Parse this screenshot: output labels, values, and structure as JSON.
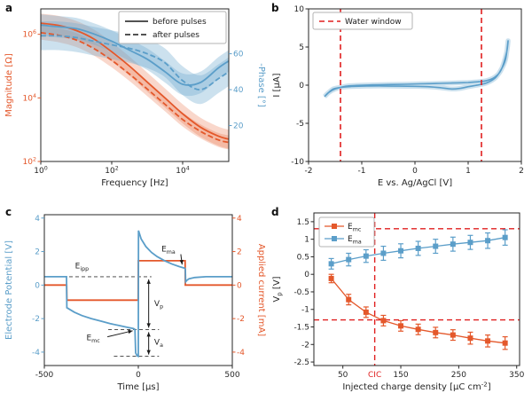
{
  "page": {
    "background": "#ffffff"
  },
  "colors": {
    "orange": "#e4582b",
    "orange_band": "rgba(235,110,70,0.28)",
    "blue": "#5b9ec9",
    "blue_band": "rgba(110,170,205,0.35)",
    "red": "#e01f1f",
    "axis": "#262626",
    "legend_border": "#b3b3b3",
    "legend_text": "#1a1a1a"
  },
  "chart_data": [
    {
      "panel_label": "a",
      "type": "line",
      "xlabel": "Frequency [Hz]",
      "x_scale": "log",
      "x_range": [
        0,
        5.3
      ],
      "x_ticks": [
        {
          "v": 0,
          "label": "10^{0}"
        },
        {
          "v": 2,
          "label": "10^{2}"
        },
        {
          "v": 4,
          "label": "10^{4}"
        }
      ],
      "left_axis": {
        "label": "Magnitude [Ω]",
        "scale": "log",
        "range": [
          2,
          6.8
        ],
        "ticks": [
          {
            "v": 2,
            "label": "10^{2}"
          },
          {
            "v": 4,
            "label": "10^{4}"
          },
          {
            "v": 6,
            "label": "10^{6}"
          }
        ]
      },
      "right_axis": {
        "label": "-Phase [°]",
        "range": [
          0,
          85
        ],
        "ticks": [
          {
            "v": 20,
            "label": "20"
          },
          {
            "v": 40,
            "label": "40"
          },
          {
            "v": 60,
            "label": "60"
          }
        ]
      },
      "legend": [
        {
          "label": "before pulses",
          "dash": false
        },
        {
          "label": "after pulses",
          "dash": true
        }
      ],
      "x": [
        0,
        0.5,
        1,
        1.5,
        2,
        2.5,
        3,
        3.5,
        4,
        4.5,
        5,
        5.3
      ],
      "series": [
        {
          "name": "magnitude-before",
          "axis": "left",
          "color": "orange",
          "dash": false,
          "band": 0.3,
          "y": [
            6.35,
            6.28,
            6.12,
            5.85,
            5.45,
            5.0,
            4.5,
            4.0,
            3.5,
            3.08,
            2.8,
            2.7
          ]
        },
        {
          "name": "magnitude-after",
          "axis": "left",
          "color": "orange",
          "dash": true,
          "band": 0.22,
          "y": [
            6.05,
            5.97,
            5.82,
            5.55,
            5.18,
            4.75,
            4.28,
            3.8,
            3.32,
            2.95,
            2.68,
            2.6
          ]
        },
        {
          "name": "phase-before",
          "axis": "right",
          "color": "blue",
          "dash": false,
          "band": 6,
          "y": [
            76,
            75,
            74,
            71,
            67,
            62,
            57,
            50,
            43,
            44,
            52,
            56
          ]
        },
        {
          "name": "phase-after",
          "axis": "right",
          "color": "blue",
          "dash": true,
          "band": 8,
          "y": [
            70,
            70,
            69,
            67,
            65,
            63,
            60,
            55,
            45,
            40,
            46,
            50
          ]
        }
      ]
    },
    {
      "panel_label": "b",
      "type": "line",
      "xlabel": "E vs. Ag/AgCl [V]",
      "ylabel": "I [μA]",
      "x_range": [
        -2,
        2
      ],
      "x_ticks": [
        -2,
        -1,
        0,
        1,
        2
      ],
      "y_range": [
        -10,
        10
      ],
      "y_ticks": [
        -10,
        -5,
        0,
        5,
        10
      ],
      "legend": [
        {
          "label": "Water window",
          "color": "red",
          "dash": true
        }
      ],
      "water_window_x": [
        -1.4,
        1.25
      ],
      "cv_curve": {
        "color": "blue",
        "points": [
          [
            -1.7,
            -1.5
          ],
          [
            -1.55,
            -0.55
          ],
          [
            -1.4,
            -0.3
          ],
          [
            -1.2,
            -0.18
          ],
          [
            -0.9,
            -0.12
          ],
          [
            -0.6,
            -0.1
          ],
          [
            -0.3,
            -0.13
          ],
          [
            0,
            -0.15
          ],
          [
            0.3,
            -0.22
          ],
          [
            0.5,
            -0.35
          ],
          [
            0.7,
            -0.5
          ],
          [
            0.85,
            -0.42
          ],
          [
            1.0,
            -0.2
          ],
          [
            1.2,
            0.05
          ],
          [
            1.35,
            0.3
          ],
          [
            1.5,
            0.9
          ],
          [
            1.6,
            1.8
          ],
          [
            1.7,
            3.3
          ],
          [
            1.75,
            5.8
          ],
          [
            1.72,
            4.2
          ],
          [
            1.62,
            2.0
          ],
          [
            1.5,
            1.05
          ],
          [
            1.35,
            0.6
          ],
          [
            1.2,
            0.45
          ],
          [
            1.0,
            0.35
          ],
          [
            0.7,
            0.28
          ],
          [
            0.4,
            0.22
          ],
          [
            0.1,
            0.17
          ],
          [
            -0.2,
            0.12
          ],
          [
            -0.5,
            0.08
          ],
          [
            -0.8,
            0.03
          ],
          [
            -1.1,
            -0.04
          ],
          [
            -1.3,
            -0.14
          ],
          [
            -1.5,
            -0.5
          ],
          [
            -1.62,
            -0.95
          ],
          [
            -1.7,
            -1.5
          ]
        ]
      }
    },
    {
      "panel_label": "c",
      "type": "line",
      "xlabel": "Time [μs]",
      "x_range": [
        -500,
        500
      ],
      "x_ticks": [
        -500,
        0,
        500
      ],
      "left_axis": {
        "label": "Electrode Potential [V]",
        "range": [
          -4.8,
          4.2
        ],
        "ticks": [
          -4,
          -2,
          0,
          2,
          4
        ]
      },
      "right_axis": {
        "label": "Applied current [mA]",
        "range": [
          -4.8,
          4.2
        ],
        "ticks": [
          -4,
          -2,
          0,
          2,
          4
        ]
      },
      "potential": {
        "color": "blue",
        "points": [
          [
            -500,
            0.5
          ],
          [
            -382,
            0.5
          ],
          [
            -380,
            -1.35
          ],
          [
            -340,
            -1.62
          ],
          [
            -300,
            -1.82
          ],
          [
            -250,
            -2.0
          ],
          [
            -200,
            -2.15
          ],
          [
            -150,
            -2.3
          ],
          [
            -100,
            -2.42
          ],
          [
            -60,
            -2.52
          ],
          [
            -25,
            -2.6
          ],
          [
            -18,
            -2.65
          ],
          [
            -14,
            -4.05
          ],
          [
            -6,
            -4.22
          ],
          [
            0,
            -4.25
          ],
          [
            1,
            3.25
          ],
          [
            15,
            2.75
          ],
          [
            40,
            2.3
          ],
          [
            70,
            1.95
          ],
          [
            100,
            1.7
          ],
          [
            140,
            1.45
          ],
          [
            180,
            1.25
          ],
          [
            220,
            1.1
          ],
          [
            248,
            1.0
          ],
          [
            250,
            0.95
          ],
          [
            252,
            0.2
          ],
          [
            258,
            0.28
          ],
          [
            270,
            0.38
          ],
          [
            300,
            0.45
          ],
          [
            360,
            0.5
          ],
          [
            500,
            0.5
          ]
        ]
      },
      "current": {
        "color": "orange",
        "points": [
          [
            -500,
            0
          ],
          [
            -381,
            0
          ],
          [
            -380,
            -0.9
          ],
          [
            -1,
            -0.9
          ],
          [
            0,
            1.45
          ],
          [
            249,
            1.45
          ],
          [
            250,
            0
          ],
          [
            500,
            0
          ]
        ]
      },
      "annotations": {
        "eipp": {
          "label": "E_{ipp}",
          "line_y": 0.5,
          "line_x": [
            -500,
            70
          ],
          "label_pos": [
            -300,
            1.0
          ]
        },
        "emc": {
          "label": "E_{mc}",
          "label_pos": [
            -240,
            -3.3
          ],
          "arrow_to": [
            -30,
            -2.62
          ]
        },
        "ema": {
          "label": "E_{ma}",
          "label_pos": [
            160,
            2.0
          ],
          "arrow_to": [
            233,
            1.12
          ]
        },
        "vp": {
          "label": "V_{p}",
          "x": 55,
          "y_from": 0.5,
          "y_to": -2.65,
          "label_pos": [
            75,
            -1.25
          ]
        },
        "va": {
          "label": "V_{a}",
          "x": 55,
          "y_from": -2.65,
          "y_to": -4.25,
          "label_pos": [
            75,
            -3.55
          ]
        },
        "dash_mid": {
          "y": -2.65,
          "x": [
            -160,
            110
          ]
        },
        "dash_bot": {
          "y": -4.25,
          "x": [
            -130,
            110
          ]
        }
      }
    },
    {
      "panel_label": "d",
      "type": "scatter",
      "xlabel": "Injected charge density [μC cm^{-2}]",
      "ylabel": "V_{p} [V]",
      "x_range": [
        0,
        355
      ],
      "x_ticks": [
        50,
        150,
        250,
        350
      ],
      "y_range": [
        -2.6,
        1.75
      ],
      "y_ticks": [
        -2.5,
        -2,
        -1.5,
        -1,
        -0.5,
        0,
        0.5,
        1,
        1.5
      ],
      "legend": [
        {
          "label": "E_{mc}",
          "color": "orange"
        },
        {
          "label": "E_{ma}",
          "color": "blue"
        }
      ],
      "water_lines_y": [
        1.3,
        -1.3
      ],
      "cic": {
        "x": 105,
        "label": "CIC"
      },
      "x_values": [
        30,
        60,
        90,
        120,
        150,
        180,
        210,
        240,
        270,
        300,
        330
      ],
      "series": [
        {
          "name": "E_mc",
          "color": "orange",
          "y": [
            -0.12,
            -0.72,
            -1.08,
            -1.32,
            -1.47,
            -1.57,
            -1.66,
            -1.73,
            -1.82,
            -1.9,
            -1.96
          ],
          "err": [
            0.12,
            0.15,
            0.15,
            0.15,
            0.15,
            0.15,
            0.15,
            0.15,
            0.17,
            0.17,
            0.18
          ]
        },
        {
          "name": "E_ma",
          "color": "blue",
          "y": [
            0.3,
            0.42,
            0.52,
            0.6,
            0.67,
            0.74,
            0.8,
            0.86,
            0.91,
            0.96,
            1.05
          ],
          "err": [
            0.15,
            0.18,
            0.18,
            0.2,
            0.2,
            0.2,
            0.2,
            0.2,
            0.2,
            0.22,
            0.22
          ]
        }
      ]
    }
  ]
}
